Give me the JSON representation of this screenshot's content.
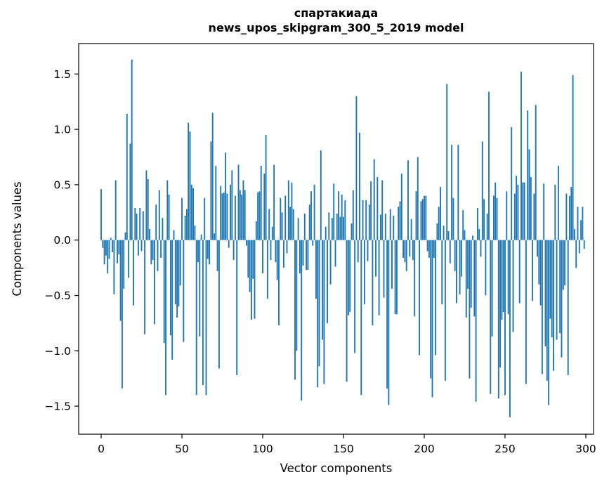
{
  "figure": {
    "title_line1": "спартакиада",
    "title_line2": "news_upos_skipgram_300_5_2019 model",
    "xlabel": "Vector components",
    "ylabel": "Components values"
  },
  "chart_data": {
    "type": "bar",
    "title": "спартакиада\nnews_upos_skipgram_300_5_2019 model",
    "xlabel": "Vector components",
    "ylabel": "Components values",
    "bar_color": "#1f77b4",
    "background_color": "#ffffff",
    "spine_color": "#000000",
    "grid": false,
    "legend": null,
    "x_ticks": [
      0,
      50,
      100,
      150,
      200,
      250,
      300
    ],
    "y_ticks": [
      -1.5,
      -1.0,
      -0.5,
      0.0,
      0.5,
      1.0,
      1.5
    ],
    "xlim": [
      -15,
      315
    ],
    "ylim": [
      -1.76,
      1.78
    ],
    "n_components": 300,
    "x": "index 0..299",
    "values": [
      0.46,
      -0.07,
      -0.22,
      -0.14,
      -0.3,
      -0.17,
      0.02,
      -0.11,
      -0.49,
      0.54,
      -0.21,
      -0.13,
      -0.73,
      -1.34,
      -0.44,
      0.07,
      1.14,
      -0.34,
      0.87,
      1.63,
      -0.59,
      0.29,
      0.24,
      -0.14,
      0.29,
      -0.1,
      0.26,
      -0.85,
      0.63,
      0.55,
      0.1,
      -0.22,
      -0.18,
      -0.76,
      0.32,
      -0.28,
      0.45,
      -0.16,
      0.2,
      -0.93,
      -1.4,
      0.54,
      0.41,
      -0.86,
      -1.08,
      0.09,
      -0.58,
      -0.7,
      -0.6,
      -0.41,
      0.38,
      -0.92,
      0.22,
      0.28,
      1.06,
      0.98,
      0.5,
      0.47,
      0.13,
      -1.4,
      -0.2,
      -0.87,
      0.05,
      -1.31,
      0.38,
      -1.4,
      -0.17,
      -0.22,
      0.89,
      1.15,
      0.06,
      0.67,
      -0.28,
      -1.16,
      0.49,
      0.42,
      0.43,
      0.79,
      0.42,
      -0.07,
      0.5,
      0.63,
      -0.18,
      0.4,
      -1.22,
      0.68,
      0.45,
      0.41,
      0.54,
      0.45,
      -0.05,
      -0.34,
      -0.47,
      -0.72,
      -0.35,
      -0.71,
      0.17,
      0.43,
      0.44,
      0.67,
      -0.3,
      0.6,
      0.95,
      -0.53,
      0.28,
      -0.18,
      0.12,
      0.68,
      -0.2,
      -0.36,
      -0.77,
      0.38,
      0.25,
      -0.25,
      0.4,
      -0.12,
      0.54,
      0.3,
      0.52,
      0.28,
      -1.26,
      -1.0,
      0.2,
      -0.3,
      -1.45,
      -0.23,
      0.24,
      -0.27,
      -0.27,
      0.32,
      0.44,
      -0.05,
      0.5,
      -0.53,
      -1.33,
      -1.14,
      0.81,
      -0.9,
      -1.3,
      0.12,
      -0.75,
      0.25,
      -0.4,
      0.2,
      0.51,
      -0.24,
      0.24,
      0.44,
      0.21,
      0.41,
      0.21,
      0.36,
      -1.28,
      -0.68,
      -0.65,
      0.15,
      0.45,
      -1.02,
      1.3,
      -0.2,
      0.97,
      -1.4,
      0.36,
      -0.58,
      0.36,
      -0.19,
      0.32,
      0.53,
      -0.77,
      0.73,
      -0.33,
      0.57,
      -0.68,
      0.23,
      0.54,
      -0.52,
      0.24,
      -1.34,
      -1.49,
      0.28,
      -0.44,
      0.22,
      -0.67,
      -0.67,
      0.3,
      0.35,
      0.6,
      -0.16,
      -0.2,
      -0.28,
      0.72,
      -0.15,
      0.19,
      -0.18,
      -0.69,
      0.44,
      0.75,
      -1.04,
      0.35,
      0.37,
      0.4,
      0.4,
      -0.1,
      -0.16,
      -1.25,
      -1.42,
      -0.16,
      -1.04,
      0.15,
      0.3,
      0.48,
      -0.58,
      0.13,
      -1.27,
      1.41,
      0.08,
      -0.21,
      0.86,
      0.38,
      -0.28,
      -0.57,
      0.86,
      -0.49,
      -0.33,
      0.27,
      0.09,
      -0.7,
      -0.44,
      -1.25,
      -0.61,
      0.04,
      -0.69,
      -1.46,
      0.29,
      0.1,
      -0.15,
      0.89,
      0.37,
      -0.5,
      0.24,
      1.34,
      -1.39,
      -0.87,
      0.4,
      0.52,
      0.38,
      -1.43,
      -1.15,
      -0.72,
      -0.65,
      -1.4,
      0.44,
      -0.67,
      -1.6,
      1.02,
      -0.83,
      0.42,
      0.58,
      0.5,
      -0.57,
      1.52,
      0.52,
      0.52,
      -1.3,
      1.17,
      0.82,
      0.57,
      -0.55,
      0.42,
      1.22,
      -0.15,
      -0.4,
      -0.59,
      -1.21,
      0.51,
      -0.96,
      -1.27,
      -1.49,
      -0.71,
      -0.88,
      -1.18,
      0.5,
      -0.9,
      0.67,
      -0.84,
      -1.06,
      -0.45,
      -0.41,
      0.42,
      -1.22,
      0.4,
      0.48,
      1.49,
      0.1,
      -0.25,
      0.3,
      -0.12,
      0.18,
      0.3,
      -0.08
    ]
  }
}
